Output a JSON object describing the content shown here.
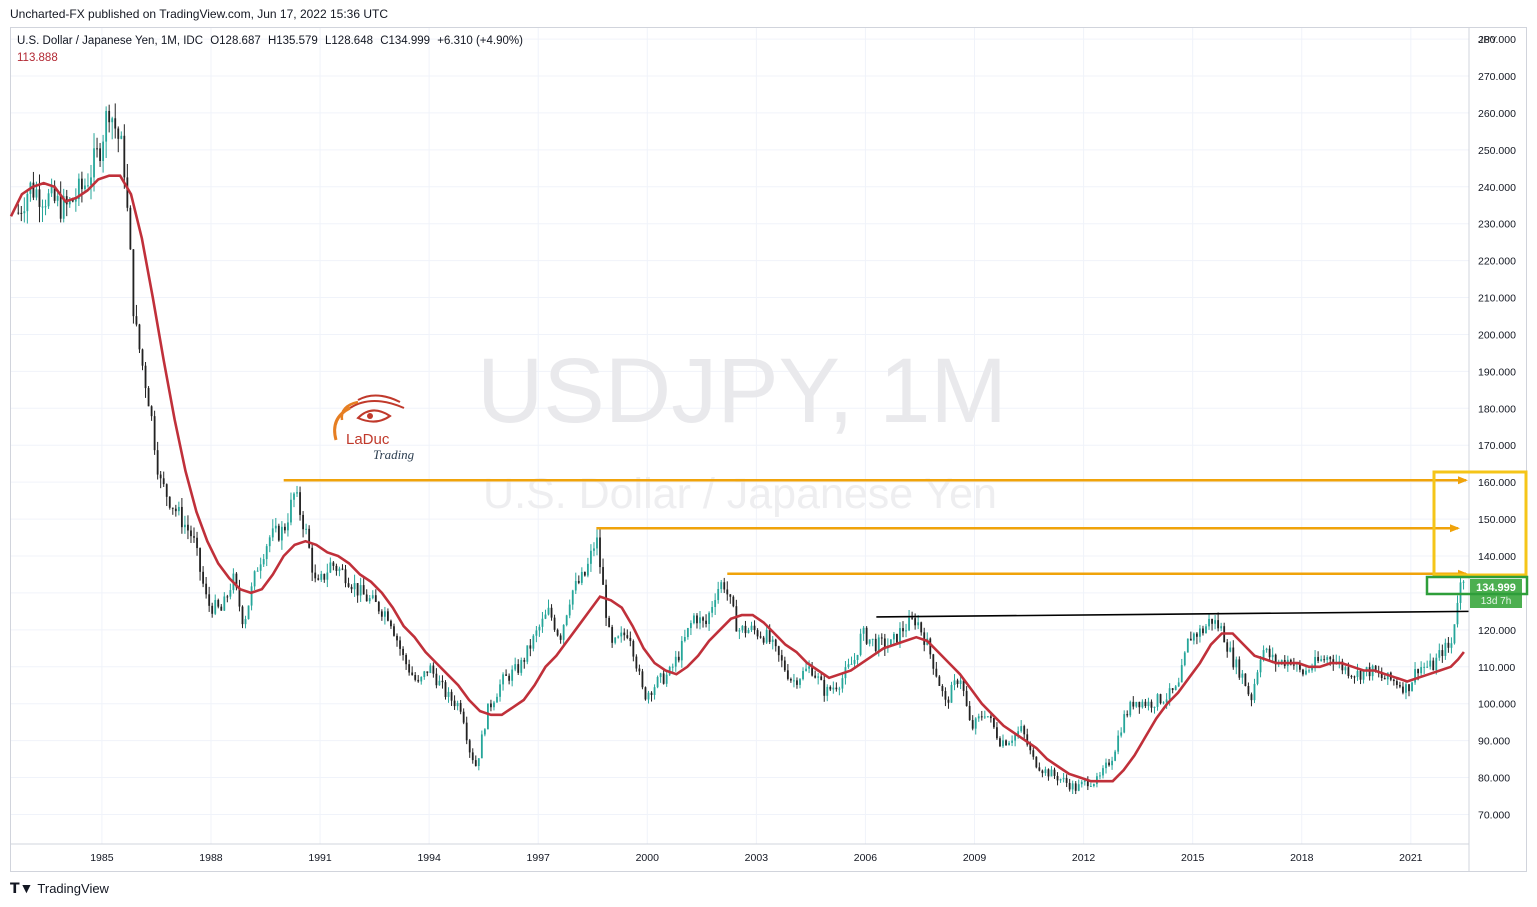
{
  "header": {
    "published": "Uncharted-FX published on TradingView.com, Jun 17, 2022 15:36 UTC"
  },
  "legend": {
    "symbol": "U.S. Dollar / Japanese Yen, 1M, IDC",
    "open": "O128.687",
    "high": "H135.579",
    "low": "L128.648",
    "close": "C134.999",
    "change": "+6.310 (+4.90%)",
    "ma_value": "113.888"
  },
  "watermark": {
    "line1": "USDJPY, 1M",
    "line2": "U.S. Dollar / Japanese Yen"
  },
  "logo": {
    "name": "LaDuc",
    "sub": "Trading"
  },
  "price_label": {
    "value": "134.999",
    "countdown": "13d 7h"
  },
  "footer": {
    "brand": "TradingView"
  },
  "colors": {
    "up": "#26a69a",
    "down": "#222222",
    "ma": "#c0303a",
    "arrow": "#f0a30a",
    "box_yellow": "#f5c518",
    "box_green": "#2e9e3a",
    "label_green": "#4caf50",
    "resistance": "#000000"
  },
  "chart_data": {
    "type": "candlestick",
    "symbol": "USDJPY",
    "interval": "1M",
    "yaxis_unit": "JPY",
    "ylim": [
      62,
      283
    ],
    "xlim": [
      1982.5,
      2022.6
    ],
    "y_ticks": [
      "280.000",
      "270.000",
      "260.000",
      "250.000",
      "240.000",
      "230.000",
      "220.000",
      "210.000",
      "200.000",
      "190.000",
      "180.000",
      "170.000",
      "160.000",
      "150.000",
      "140.000",
      "130.000",
      "120.000",
      "110.000",
      "100.000",
      "90.000",
      "80.000",
      "70.000"
    ],
    "x_ticks": [
      "1985",
      "1988",
      "1991",
      "1994",
      "1997",
      "2000",
      "2003",
      "2006",
      "2009",
      "2012",
      "2015",
      "2018",
      "2021"
    ],
    "price_path": [
      [
        1982.7,
        233
      ],
      [
        1983.0,
        240
      ],
      [
        1983.5,
        237
      ],
      [
        1984.0,
        234
      ],
      [
        1984.5,
        240
      ],
      [
        1984.9,
        249
      ],
      [
        1985.2,
        262
      ],
      [
        1985.6,
        248
      ],
      [
        1985.9,
        203
      ],
      [
        1986.3,
        182
      ],
      [
        1986.6,
        160
      ],
      [
        1987.0,
        153
      ],
      [
        1987.5,
        145
      ],
      [
        1987.9,
        127
      ],
      [
        1988.3,
        125
      ],
      [
        1988.6,
        134
      ],
      [
        1988.9,
        122
      ],
      [
        1989.3,
        138
      ],
      [
        1989.6,
        145
      ],
      [
        1990.0,
        147
      ],
      [
        1990.3,
        157
      ],
      [
        1990.6,
        147
      ],
      [
        1990.9,
        131
      ],
      [
        1991.3,
        138
      ],
      [
        1991.7,
        135
      ],
      [
        1992.1,
        130
      ],
      [
        1992.5,
        127
      ],
      [
        1992.9,
        124
      ],
      [
        1993.3,
        112
      ],
      [
        1993.7,
        105
      ],
      [
        1994.0,
        110
      ],
      [
        1994.5,
        102
      ],
      [
        1994.9,
        99
      ],
      [
        1995.1,
        88
      ],
      [
        1995.3,
        83
      ],
      [
        1995.6,
        98
      ],
      [
        1996.0,
        106
      ],
      [
        1996.5,
        110
      ],
      [
        1997.0,
        120
      ],
      [
        1997.3,
        125
      ],
      [
        1997.6,
        118
      ],
      [
        1997.9,
        130
      ],
      [
        1998.3,
        135
      ],
      [
        1998.6,
        145
      ],
      [
        1998.8,
        130
      ],
      [
        1999.0,
        115
      ],
      [
        1999.5,
        120
      ],
      [
        1999.9,
        102
      ],
      [
        2000.3,
        106
      ],
      [
        2000.6,
        108
      ],
      [
        2000.9,
        114
      ],
      [
        2001.3,
        124
      ],
      [
        2001.6,
        121
      ],
      [
        2001.9,
        131
      ],
      [
        2002.1,
        133
      ],
      [
        2002.5,
        120
      ],
      [
        2002.9,
        120
      ],
      [
        2003.3,
        118
      ],
      [
        2003.7,
        111
      ],
      [
        2004.0,
        106
      ],
      [
        2004.5,
        110
      ],
      [
        2004.9,
        103
      ],
      [
        2005.3,
        106
      ],
      [
        2005.7,
        112
      ],
      [
        2005.9,
        119
      ],
      [
        2006.3,
        116
      ],
      [
        2006.7,
        116
      ],
      [
        2007.0,
        120
      ],
      [
        2007.4,
        123
      ],
      [
        2007.7,
        116
      ],
      [
        2007.9,
        110
      ],
      [
        2008.2,
        100
      ],
      [
        2008.6,
        108
      ],
      [
        2008.9,
        93
      ],
      [
        2009.3,
        98
      ],
      [
        2009.7,
        90
      ],
      [
        2009.9,
        90
      ],
      [
        2010.3,
        93
      ],
      [
        2010.6,
        85
      ],
      [
        2010.9,
        82
      ],
      [
        2011.3,
        80
      ],
      [
        2011.8,
        77
      ],
      [
        2012.1,
        79
      ],
      [
        2012.4,
        79
      ],
      [
        2012.8,
        86
      ],
      [
        2013.1,
        96
      ],
      [
        2013.4,
        101
      ],
      [
        2013.8,
        100
      ],
      [
        2014.3,
        102
      ],
      [
        2014.6,
        104
      ],
      [
        2014.9,
        118
      ],
      [
        2015.3,
        120
      ],
      [
        2015.5,
        123
      ],
      [
        2015.8,
        120
      ],
      [
        2016.1,
        112
      ],
      [
        2016.4,
        107
      ],
      [
        2016.6,
        101
      ],
      [
        2016.9,
        115
      ],
      [
        2017.3,
        111
      ],
      [
        2017.7,
        112
      ],
      [
        2018.0,
        108
      ],
      [
        2018.4,
        111
      ],
      [
        2018.8,
        113
      ],
      [
        2019.1,
        110
      ],
      [
        2019.5,
        108
      ],
      [
        2019.9,
        109
      ],
      [
        2020.2,
        107
      ],
      [
        2020.6,
        106
      ],
      [
        2020.9,
        104
      ],
      [
        2021.2,
        110
      ],
      [
        2021.6,
        110
      ],
      [
        2021.9,
        115
      ],
      [
        2022.1,
        115
      ],
      [
        2022.3,
        130
      ],
      [
        2022.46,
        135
      ]
    ],
    "ma_path": [
      [
        1982.5,
        232
      ],
      [
        1982.8,
        238
      ],
      [
        1983.1,
        240
      ],
      [
        1983.4,
        241
      ],
      [
        1983.7,
        240
      ],
      [
        1984.0,
        236
      ],
      [
        1984.3,
        237
      ],
      [
        1984.6,
        239
      ],
      [
        1984.9,
        242
      ],
      [
        1985.2,
        243
      ],
      [
        1985.5,
        243
      ],
      [
        1985.8,
        238
      ],
      [
        1986.1,
        226
      ],
      [
        1986.4,
        210
      ],
      [
        1986.7,
        193
      ],
      [
        1987.0,
        177
      ],
      [
        1987.3,
        163
      ],
      [
        1987.6,
        152
      ],
      [
        1987.9,
        144
      ],
      [
        1988.2,
        138
      ],
      [
        1988.5,
        134
      ],
      [
        1988.8,
        131
      ],
      [
        1989.1,
        130
      ],
      [
        1989.4,
        131
      ],
      [
        1989.7,
        135
      ],
      [
        1990.0,
        140
      ],
      [
        1990.3,
        143
      ],
      [
        1990.6,
        144
      ],
      [
        1990.9,
        143
      ],
      [
        1991.2,
        141
      ],
      [
        1991.5,
        140
      ],
      [
        1991.8,
        138
      ],
      [
        1992.1,
        135
      ],
      [
        1992.4,
        133
      ],
      [
        1992.7,
        130
      ],
      [
        1993.0,
        126
      ],
      [
        1993.3,
        121
      ],
      [
        1993.6,
        118
      ],
      [
        1993.9,
        114
      ],
      [
        1994.2,
        111
      ],
      [
        1994.5,
        108
      ],
      [
        1994.8,
        105
      ],
      [
        1995.1,
        101
      ],
      [
        1995.4,
        98
      ],
      [
        1995.7,
        97
      ],
      [
        1996.0,
        97
      ],
      [
        1996.3,
        99
      ],
      [
        1996.6,
        101
      ],
      [
        1996.9,
        105
      ],
      [
        1997.2,
        110
      ],
      [
        1997.5,
        113
      ],
      [
        1997.8,
        117
      ],
      [
        1998.1,
        121
      ],
      [
        1998.4,
        125
      ],
      [
        1998.7,
        129
      ],
      [
        1999.0,
        128
      ],
      [
        1999.3,
        126
      ],
      [
        1999.6,
        121
      ],
      [
        1999.9,
        115
      ],
      [
        2000.2,
        111
      ],
      [
        2000.5,
        109
      ],
      [
        2000.8,
        108
      ],
      [
        2001.1,
        110
      ],
      [
        2001.4,
        113
      ],
      [
        2001.7,
        117
      ],
      [
        2002.0,
        120
      ],
      [
        2002.3,
        123
      ],
      [
        2002.6,
        124
      ],
      [
        2002.9,
        124
      ],
      [
        2003.2,
        122
      ],
      [
        2003.5,
        119
      ],
      [
        2003.8,
        116
      ],
      [
        2004.1,
        114
      ],
      [
        2004.4,
        111
      ],
      [
        2004.7,
        109
      ],
      [
        2005.0,
        107
      ],
      [
        2005.3,
        108
      ],
      [
        2005.6,
        109
      ],
      [
        2005.9,
        111
      ],
      [
        2006.2,
        113
      ],
      [
        2006.5,
        115
      ],
      [
        2006.8,
        116
      ],
      [
        2007.1,
        117
      ],
      [
        2007.4,
        118
      ],
      [
        2007.7,
        117
      ],
      [
        2008.0,
        114
      ],
      [
        2008.3,
        111
      ],
      [
        2008.6,
        108
      ],
      [
        2008.9,
        104
      ],
      [
        2009.2,
        100
      ],
      [
        2009.5,
        97
      ],
      [
        2009.8,
        94
      ],
      [
        2010.1,
        92
      ],
      [
        2010.4,
        90
      ],
      [
        2010.7,
        88
      ],
      [
        2011.0,
        85
      ],
      [
        2011.3,
        83
      ],
      [
        2011.6,
        81
      ],
      [
        2011.9,
        80
      ],
      [
        2012.2,
        79
      ],
      [
        2012.5,
        79
      ],
      [
        2012.8,
        79
      ],
      [
        2013.1,
        82
      ],
      [
        2013.4,
        86
      ],
      [
        2013.7,
        91
      ],
      [
        2014.0,
        96
      ],
      [
        2014.3,
        100
      ],
      [
        2014.6,
        103
      ],
      [
        2014.9,
        107
      ],
      [
        2015.2,
        111
      ],
      [
        2015.5,
        116
      ],
      [
        2015.8,
        119
      ],
      [
        2016.1,
        119
      ],
      [
        2016.4,
        116
      ],
      [
        2016.7,
        113
      ],
      [
        2017.0,
        112
      ],
      [
        2017.3,
        111
      ],
      [
        2017.6,
        111
      ],
      [
        2017.9,
        111
      ],
      [
        2018.2,
        110
      ],
      [
        2018.5,
        110
      ],
      [
        2018.8,
        111
      ],
      [
        2019.1,
        111
      ],
      [
        2019.4,
        110
      ],
      [
        2019.7,
        109
      ],
      [
        2020.0,
        109
      ],
      [
        2020.3,
        108
      ],
      [
        2020.6,
        107
      ],
      [
        2020.9,
        106
      ],
      [
        2021.2,
        107
      ],
      [
        2021.5,
        108
      ],
      [
        2021.8,
        109
      ],
      [
        2022.1,
        110
      ],
      [
        2022.3,
        112
      ],
      [
        2022.46,
        114
      ]
    ],
    "annotations": {
      "horizontal_arrows": [
        {
          "x_start": 1990.0,
          "y": 160.5
        },
        {
          "x_start": 1998.6,
          "y": 147.5
        },
        {
          "x_start": 2002.2,
          "y": 135.2
        }
      ],
      "resistance_line": {
        "x_start": 2006.3,
        "y_start": 123.5,
        "x_end": 2022.6,
        "y_end": 125.0
      }
    }
  }
}
